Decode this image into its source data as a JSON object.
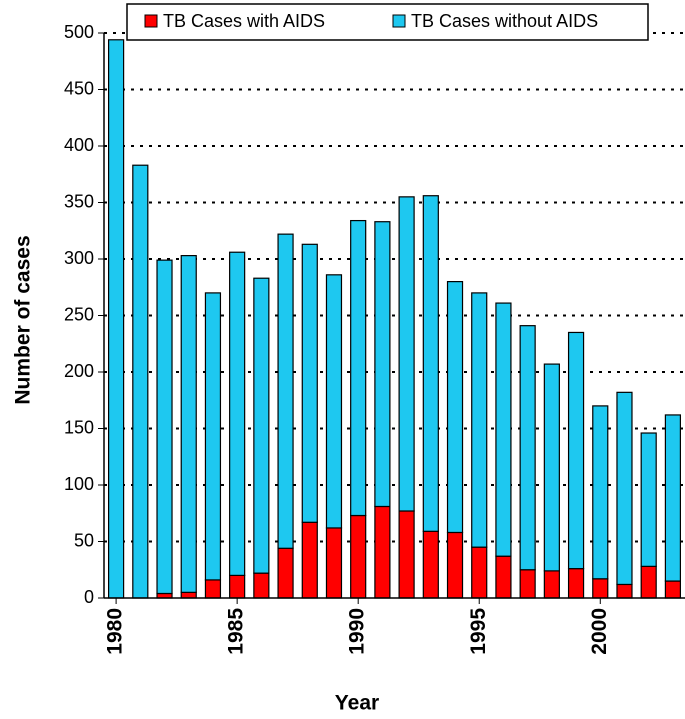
{
  "chart_data": {
    "type": "stacked_bar",
    "x_label": "Year",
    "y_label": "Number of cases",
    "categories": [
      "1980",
      null,
      null,
      null,
      null,
      "1985",
      null,
      null,
      null,
      null,
      "1990",
      null,
      null,
      null,
      null,
      "1995",
      null,
      null,
      null,
      null,
      "2000",
      null,
      null,
      null
    ],
    "series": [
      {
        "name": "TB Cases with AIDS",
        "color": "#ff0000",
        "values": [
          0,
          0,
          4,
          5,
          16,
          20,
          22,
          44,
          67,
          62,
          73,
          81,
          77,
          59,
          58,
          45,
          37,
          25,
          24,
          26,
          17,
          12,
          28,
          15
        ]
      },
      {
        "name": "TB Cases without AIDS",
        "color": "#1ec8f0",
        "values": [
          494,
          383,
          295,
          298,
          254,
          286,
          261,
          278,
          246,
          224,
          261,
          252,
          278,
          297,
          222,
          225,
          224,
          216,
          183,
          209,
          153,
          170,
          118,
          147
        ]
      }
    ],
    "ylim": [
      0,
      500
    ],
    "yticks": [
      0,
      50,
      100,
      150,
      200,
      250,
      300,
      350,
      400,
      450,
      500
    ],
    "grid": true
  }
}
